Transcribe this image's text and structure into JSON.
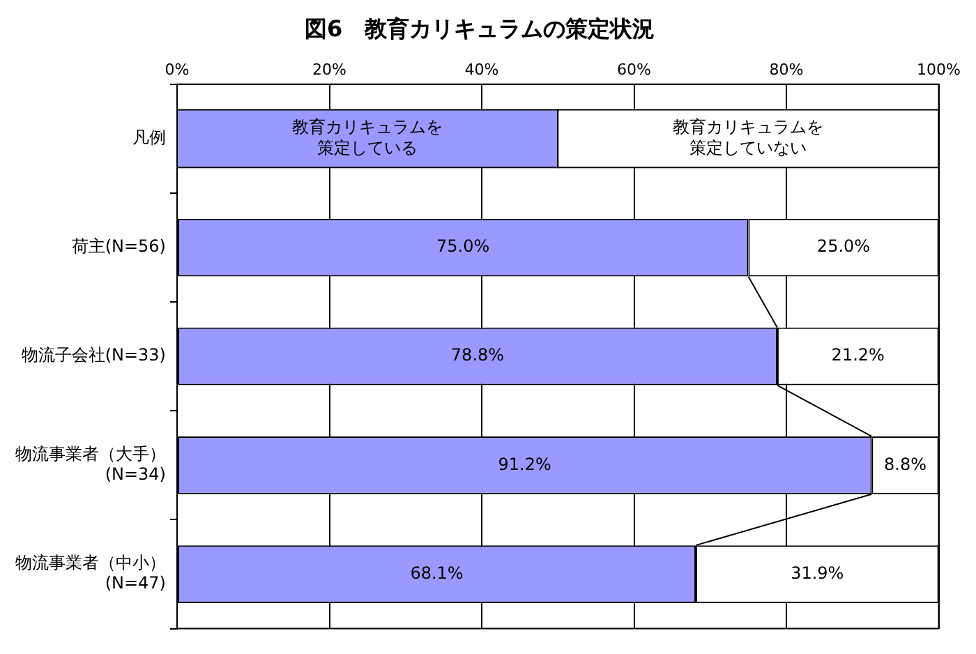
{
  "chart_data": {
    "type": "bar",
    "orientation": "horizontal",
    "stacked": true,
    "title": "図6　教育カリキュラムの策定状況",
    "categories": [
      "荷主(N=56)",
      "物流子会社(N=33)",
      "物流事業者（大手）\n(N=34)",
      "物流事業者（中小）\n(N=47)"
    ],
    "series": [
      {
        "name": "教育カリキュラムを策定している",
        "color": "#9999ff",
        "values": [
          75.0,
          78.8,
          91.2,
          68.1
        ],
        "value_labels": [
          "75.0%",
          "78.8%",
          "91.2%",
          "68.1%"
        ]
      },
      {
        "name": "教育カリキュラムを策定していない",
        "color": "#ffffff",
        "values": [
          25.0,
          21.2,
          8.8,
          31.9
        ],
        "value_labels": [
          "25.0%",
          "21.2%",
          "8.8%",
          "31.9%"
        ]
      }
    ],
    "xlim": [
      0,
      100
    ],
    "xticks": [
      {
        "value": 0,
        "label": "0%"
      },
      {
        "value": 20,
        "label": "20%"
      },
      {
        "value": 40,
        "label": "40%"
      },
      {
        "value": 60,
        "label": "60%"
      },
      {
        "value": 80,
        "label": "80%"
      },
      {
        "value": 100,
        "label": "100%"
      }
    ],
    "grid": "x",
    "legend": "top",
    "legend_title": "凡例"
  }
}
